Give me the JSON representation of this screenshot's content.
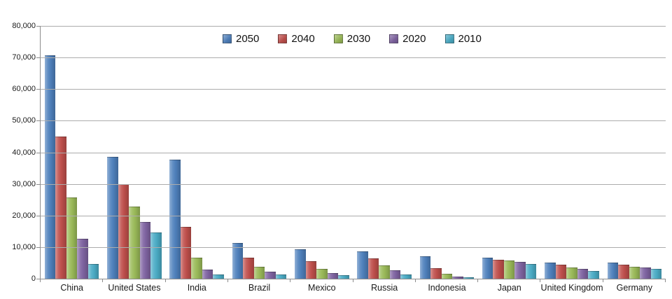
{
  "chart_data": {
    "type": "bar",
    "title": "",
    "xlabel": "",
    "ylabel": "",
    "categories": [
      "China",
      "United States",
      "India",
      "Brazil",
      "Mexico",
      "Russia",
      "Indonesia",
      "Japan",
      "United Kingdom",
      "Germany"
    ],
    "series": [
      {
        "name": "2050",
        "color": "#4F81BD",
        "values": [
          70710,
          38514,
          37668,
          11366,
          9340,
          8580,
          7010,
          6677,
          5133,
          5024
        ]
      },
      {
        "name": "2040",
        "color": "#C0504D",
        "values": [
          45022,
          29823,
          16510,
          6631,
          5471,
          6320,
          3286,
          6042,
          4344,
          4388
        ]
      },
      {
        "name": "2030",
        "color": "#9BBB59",
        "values": [
          25610,
          22817,
          6683,
          3720,
          3068,
          4265,
          1479,
          5814,
          3595,
          3761
        ]
      },
      {
        "name": "2020",
        "color": "#8064A2",
        "values": [
          12630,
          17978,
          2848,
          2194,
          1742,
          2554,
          752,
          5224,
          3101,
          3519
        ]
      },
      {
        "name": "2010",
        "color": "#4BACC6",
        "values": [
          4667,
          14535,
          1256,
          1346,
          1009,
          1371,
          419,
          4604,
          2546,
          3083
        ]
      }
    ],
    "ylim": [
      0,
      80000
    ],
    "ytick_interval": 10000,
    "ytick_labels": [
      "0",
      "10,000",
      "20,000",
      "30,000",
      "40,000",
      "50,000",
      "60,000",
      "70,000",
      "80,000"
    ],
    "grid": true,
    "legend_position": "top-center"
  },
  "colors": {
    "background": "#FFFFFF",
    "gridline": "#ACACAC",
    "axis": "#8C8C8C",
    "text": "#1A1A1A"
  }
}
